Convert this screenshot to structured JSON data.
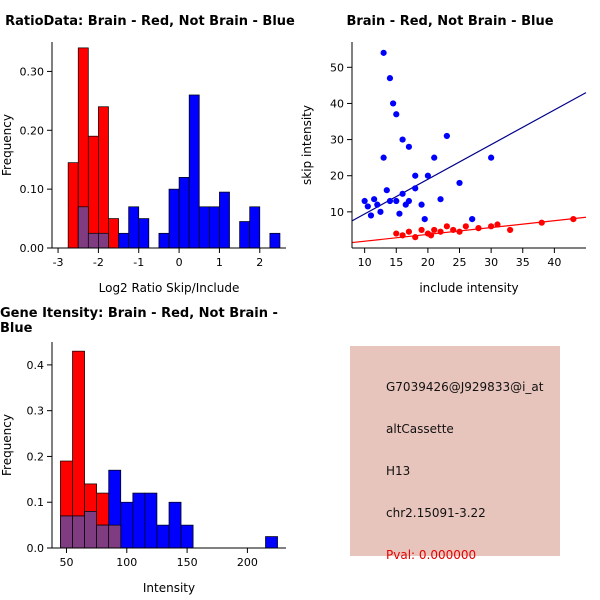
{
  "window": {
    "background": "#ffffff"
  },
  "chart_data": [
    {
      "type": "histogram",
      "title": "RatioData: Brain - Red, Not Brain - Blue",
      "xlabel": "Log2 Ratio Skip/Include",
      "ylabel": "Frequency",
      "xlim": [
        -3.15,
        2.65
      ],
      "ylim": [
        0,
        0.35
      ],
      "xticks": [
        -3,
        -2,
        -1,
        0,
        1,
        2
      ],
      "xtick_labels": [
        "-3",
        "-2",
        "-1",
        "0",
        "1",
        "2"
      ],
      "yticks": [
        0,
        0.1,
        0.2,
        0.3
      ],
      "ytick_labels": [
        "0.00",
        "0.10",
        "0.20",
        "0.30"
      ],
      "bin_width": 0.25,
      "legend_note": "Brain = red, Not Brain = blue, overlap = purple",
      "series": [
        {
          "name": "brain",
          "color": "#ff0000",
          "bins": [
            [
              -2.75,
              0.145
            ],
            [
              -2.5,
              0.34
            ],
            [
              -2.25,
              0.19
            ],
            [
              -2.0,
              0.24
            ],
            [
              -1.75,
              0.05
            ]
          ]
        },
        {
          "name": "not-brain",
          "color": "#0000ff",
          "bins": [
            [
              -1.5,
              0.025
            ],
            [
              -1.25,
              0.07
            ],
            [
              -1.0,
              0.05
            ],
            [
              -0.5,
              0.025
            ],
            [
              -0.25,
              0.1
            ],
            [
              0,
              0.12
            ],
            [
              0.25,
              0.26
            ],
            [
              0.5,
              0.07
            ],
            [
              0.75,
              0.07
            ],
            [
              1.0,
              0.095
            ],
            [
              1.5,
              0.045
            ],
            [
              1.75,
              0.07
            ],
            [
              2.25,
              0.025
            ]
          ]
        },
        {
          "name": "overlap",
          "color": "#803c80",
          "bins": [
            [
              -2.5,
              0.07
            ],
            [
              -2.25,
              0.025
            ],
            [
              -2.0,
              0.025
            ]
          ]
        }
      ]
    },
    {
      "type": "scatter",
      "title": "Brain - Red, Not Brain - Blue",
      "xlabel": "include intensity",
      "ylabel": "skip intensity",
      "xlim": [
        8,
        45
      ],
      "ylim": [
        0,
        57
      ],
      "xticks": [
        10,
        15,
        20,
        25,
        30,
        35,
        40
      ],
      "yticks": [
        10,
        20,
        30,
        40,
        50
      ],
      "series": [
        {
          "name": "not-brain",
          "color": "#0000ff",
          "points": [
            [
              10,
              13
            ],
            [
              10.5,
              11.5
            ],
            [
              11,
              9
            ],
            [
              11.5,
              13.5
            ],
            [
              12,
              12
            ],
            [
              12.5,
              10
            ],
            [
              13,
              54
            ],
            [
              13,
              25
            ],
            [
              13.5,
              16
            ],
            [
              14,
              47
            ],
            [
              14,
              13
            ],
            [
              14.5,
              40
            ],
            [
              15,
              37
            ],
            [
              15,
              13
            ],
            [
              15.5,
              9.5
            ],
            [
              16,
              30
            ],
            [
              16,
              15
            ],
            [
              16.5,
              12
            ],
            [
              17,
              28
            ],
            [
              17,
              13
            ],
            [
              18,
              20
            ],
            [
              18,
              16.5
            ],
            [
              19,
              12
            ],
            [
              19.5,
              8
            ],
            [
              20,
              20
            ],
            [
              21,
              25
            ],
            [
              22,
              13.5
            ],
            [
              23,
              31
            ],
            [
              25,
              18
            ],
            [
              27,
              8
            ],
            [
              30,
              25
            ]
          ]
        },
        {
          "name": "brain",
          "color": "#ff0000",
          "points": [
            [
              15,
              4
            ],
            [
              16,
              3.5
            ],
            [
              17,
              4.5
            ],
            [
              18,
              3
            ],
            [
              19,
              5
            ],
            [
              20,
              4
            ],
            [
              20.5,
              3.5
            ],
            [
              21,
              5
            ],
            [
              22,
              4.5
            ],
            [
              23,
              6
            ],
            [
              24,
              5
            ],
            [
              25,
              4.5
            ],
            [
              26,
              6
            ],
            [
              28,
              5.5
            ],
            [
              30,
              6
            ],
            [
              31,
              6.5
            ],
            [
              33,
              5
            ],
            [
              38,
              7
            ],
            [
              43,
              8
            ]
          ]
        }
      ],
      "lines": [
        {
          "name": "not-brain-fit",
          "color": "#00008b",
          "x1": 8,
          "y1": 7.5,
          "x2": 45,
          "y2": 43
        },
        {
          "name": "brain-fit",
          "color": "#ff0000",
          "x1": 8,
          "y1": 1.5,
          "x2": 45,
          "y2": 8.5
        }
      ]
    },
    {
      "type": "histogram",
      "title": "Gene Itensity: Brain - Red, Not Brain - Blue",
      "xlabel": "Intensity",
      "ylabel": "Frequency",
      "xlim": [
        38,
        232
      ],
      "ylim": [
        0,
        0.45
      ],
      "xticks": [
        50,
        100,
        150,
        200
      ],
      "xtick_labels": [
        "50",
        "100",
        "150",
        "200"
      ],
      "yticks": [
        0,
        0.1,
        0.2,
        0.3,
        0.4
      ],
      "ytick_labels": [
        "0.0",
        "0.1",
        "0.2",
        "0.3",
        "0.4"
      ],
      "bin_width": 10,
      "legend_note": "Brain = red, Not Brain = blue, overlap = purple",
      "series": [
        {
          "name": "brain",
          "color": "#ff0000",
          "bins": [
            [
              45,
              0.19
            ],
            [
              55,
              0.43
            ],
            [
              65,
              0.14
            ],
            [
              75,
              0.12
            ],
            [
              85,
              0.05
            ]
          ]
        },
        {
          "name": "not-brain",
          "color": "#0000ff",
          "bins": [
            [
              45,
              0.07
            ],
            [
              55,
              0.07
            ],
            [
              65,
              0.08
            ],
            [
              75,
              0.05
            ],
            [
              85,
              0.17
            ],
            [
              95,
              0.1
            ],
            [
              105,
              0.12
            ],
            [
              115,
              0.12
            ],
            [
              125,
              0.05
            ],
            [
              135,
              0.1
            ],
            [
              145,
              0.05
            ],
            [
              215,
              0.025
            ]
          ]
        },
        {
          "name": "overlap",
          "color": "#803c80",
          "bins": [
            [
              45,
              0.07
            ],
            [
              55,
              0.07
            ],
            [
              65,
              0.08
            ],
            [
              75,
              0.05
            ],
            [
              85,
              0.05
            ]
          ]
        }
      ]
    }
  ],
  "info_panel": {
    "background": "#e8c5bc",
    "lines": [
      "G7039426@J929833@i_at",
      "altCassette",
      "H13",
      "chr2.15091-3.22"
    ],
    "pval": "Pval: 0.000000",
    "pval_color": "#e60000"
  }
}
